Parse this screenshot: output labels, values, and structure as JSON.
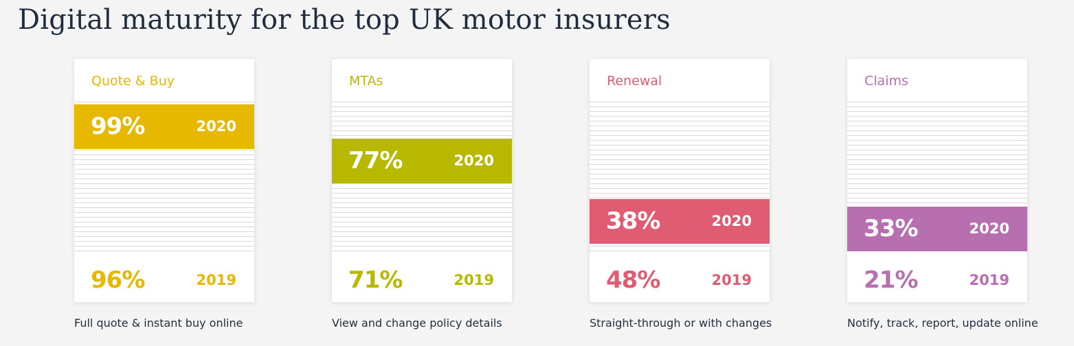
{
  "title": "Digital maturity for the top UK motor insurers",
  "chart_data": {
    "type": "bar",
    "categories": [
      "Quote & Buy",
      "MTAs",
      "Renewal",
      "Claims"
    ],
    "series": [
      {
        "name": "2020",
        "values": [
          99,
          77,
          38,
          33
        ]
      },
      {
        "name": "2019",
        "values": [
          96,
          71,
          48,
          21
        ]
      }
    ],
    "ylim": [
      0,
      100
    ],
    "grid": true
  },
  "cards": [
    {
      "label": "Quote & Buy",
      "color": "#e6b800",
      "pct_2020": "99%",
      "year_2020": "2020",
      "pct_2019": "96%",
      "year_2019": "2019",
      "caption": "Full quote & instant buy online"
    },
    {
      "label": "MTAs",
      "color": "#b8b800",
      "pct_2020": "77%",
      "year_2020": "2020",
      "pct_2019": "71%",
      "year_2019": "2019",
      "caption": "View and change policy details"
    },
    {
      "label": "Renewal",
      "color": "#e05c73",
      "pct_2020": "38%",
      "year_2020": "2020",
      "pct_2019": "48%",
      "year_2019": "2019",
      "caption": "Straight-through or with changes"
    },
    {
      "label": "Claims",
      "color": "#b86fb0",
      "pct_2020": "33%",
      "year_2020": "2020",
      "pct_2019": "21%",
      "year_2019": "2019",
      "caption": "Notify, track, report, update online"
    }
  ]
}
